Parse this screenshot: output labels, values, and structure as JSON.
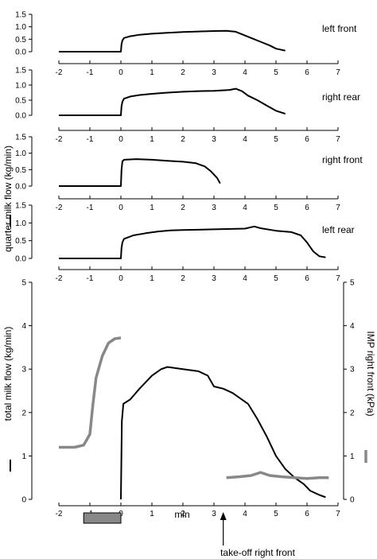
{
  "chart_data": {
    "type": "line",
    "x_unit_label": "min",
    "x_ticks": [
      -2,
      -1,
      0,
      1,
      2,
      3,
      4,
      5,
      6,
      7
    ],
    "quarter_ylabel": "quarter milk flow   (kg/min)",
    "annotation_label": "take-off right front",
    "annotation_x": 3.3,
    "panels": [
      {
        "name": "left front",
        "ylim": [
          0,
          1.5
        ],
        "yticks": [
          "0.0",
          "0.5",
          "1.0",
          "1.5"
        ],
        "series": [
          {
            "color": "#000000",
            "points": [
              [
                -2,
                0
              ],
              [
                0,
                0
              ],
              [
                0.02,
                0.3
              ],
              [
                0.05,
                0.45
              ],
              [
                0.1,
                0.55
              ],
              [
                0.3,
                0.62
              ],
              [
                0.6,
                0.68
              ],
              [
                1.0,
                0.72
              ],
              [
                1.5,
                0.76
              ],
              [
                2.0,
                0.79
              ],
              [
                2.5,
                0.81
              ],
              [
                3.0,
                0.83
              ],
              [
                3.4,
                0.84
              ],
              [
                3.7,
                0.8
              ],
              [
                3.9,
                0.7
              ],
              [
                4.2,
                0.55
              ],
              [
                4.5,
                0.4
              ],
              [
                4.8,
                0.25
              ],
              [
                5.0,
                0.12
              ],
              [
                5.3,
                0.04
              ]
            ]
          }
        ]
      },
      {
        "name": "right rear",
        "ylim": [
          0,
          1.5
        ],
        "yticks": [
          "0.0",
          "0.5",
          "1.0",
          "1.5"
        ],
        "series": [
          {
            "color": "#000000",
            "points": [
              [
                -2,
                0
              ],
              [
                0,
                0
              ],
              [
                0.02,
                0.3
              ],
              [
                0.05,
                0.45
              ],
              [
                0.1,
                0.55
              ],
              [
                0.3,
                0.62
              ],
              [
                0.6,
                0.67
              ],
              [
                1.0,
                0.71
              ],
              [
                1.5,
                0.75
              ],
              [
                2.0,
                0.78
              ],
              [
                2.5,
                0.8
              ],
              [
                3.0,
                0.81
              ],
              [
                3.5,
                0.84
              ],
              [
                3.7,
                0.88
              ],
              [
                3.9,
                0.8
              ],
              [
                4.1,
                0.65
              ],
              [
                4.4,
                0.5
              ],
              [
                4.7,
                0.32
              ],
              [
                5.0,
                0.15
              ],
              [
                5.3,
                0.05
              ]
            ]
          }
        ]
      },
      {
        "name": "right front",
        "ylim": [
          0,
          1.5
        ],
        "yticks": [
          "0.0",
          "0.5",
          "1.0",
          "1.5"
        ],
        "series": [
          {
            "color": "#000000",
            "points": [
              [
                -2,
                0
              ],
              [
                0,
                0
              ],
              [
                0.02,
                0.5
              ],
              [
                0.05,
                0.75
              ],
              [
                0.1,
                0.8
              ],
              [
                0.5,
                0.82
              ],
              [
                1.0,
                0.8
              ],
              [
                1.5,
                0.77
              ],
              [
                2.0,
                0.74
              ],
              [
                2.4,
                0.7
              ],
              [
                2.7,
                0.6
              ],
              [
                2.9,
                0.45
              ],
              [
                3.1,
                0.25
              ],
              [
                3.2,
                0.08
              ]
            ]
          }
        ]
      },
      {
        "name": "left rear",
        "ylim": [
          0,
          1.5
        ],
        "yticks": [
          "0.0",
          "0.5",
          "1.0",
          "1.5"
        ],
        "series": [
          {
            "color": "#000000",
            "points": [
              [
                -2,
                0
              ],
              [
                0,
                0
              ],
              [
                0.02,
                0.3
              ],
              [
                0.05,
                0.45
              ],
              [
                0.1,
                0.55
              ],
              [
                0.4,
                0.65
              ],
              [
                0.8,
                0.71
              ],
              [
                1.2,
                0.76
              ],
              [
                1.6,
                0.79
              ],
              [
                2.0,
                0.8
              ],
              [
                3.0,
                0.82
              ],
              [
                4.0,
                0.84
              ],
              [
                4.3,
                0.9
              ],
              [
                4.5,
                0.85
              ],
              [
                5.0,
                0.78
              ],
              [
                5.5,
                0.74
              ],
              [
                5.8,
                0.65
              ],
              [
                6.0,
                0.45
              ],
              [
                6.2,
                0.2
              ],
              [
                6.4,
                0.06
              ],
              [
                6.6,
                0.03
              ]
            ]
          }
        ]
      }
    ],
    "total_panel": {
      "ylim": [
        0,
        5
      ],
      "yticks": [
        "0",
        "1",
        "2",
        "3",
        "4",
        "5"
      ],
      "ylabel_left": "total milk flow   (kg/min)",
      "ylabel_right": "IMP right front   (kPa)",
      "series": [
        {
          "color": "#000000",
          "points": [
            [
              0,
              0
            ],
            [
              0.03,
              1.8
            ],
            [
              0.08,
              2.2
            ],
            [
              0.3,
              2.3
            ],
            [
              0.6,
              2.55
            ],
            [
              1.0,
              2.85
            ],
            [
              1.3,
              3.0
            ],
            [
              1.5,
              3.05
            ],
            [
              2.0,
              3.0
            ],
            [
              2.5,
              2.95
            ],
            [
              2.8,
              2.85
            ],
            [
              3.0,
              2.6
            ],
            [
              3.3,
              2.55
            ],
            [
              3.6,
              2.45
            ],
            [
              3.8,
              2.35
            ],
            [
              4.1,
              2.2
            ],
            [
              4.4,
              1.85
            ],
            [
              4.7,
              1.45
            ],
            [
              5.0,
              1.0
            ],
            [
              5.3,
              0.7
            ],
            [
              5.6,
              0.5
            ],
            [
              5.9,
              0.35
            ],
            [
              6.1,
              0.2
            ],
            [
              6.4,
              0.1
            ],
            [
              6.6,
              0.05
            ]
          ]
        },
        {
          "color": "#888888",
          "points": [
            [
              -2,
              1.2
            ],
            [
              -1.5,
              1.2
            ],
            [
              -1.2,
              1.25
            ],
            [
              -1.0,
              1.5
            ],
            [
              -0.9,
              2.2
            ],
            [
              -0.8,
              2.8
            ],
            [
              -0.6,
              3.3
            ],
            [
              -0.4,
              3.6
            ],
            [
              -0.2,
              3.7
            ],
            [
              0,
              3.72
            ]
          ]
        },
        {
          "color": "#888888",
          "points": [
            [
              3.4,
              0.5
            ],
            [
              3.8,
              0.52
            ],
            [
              4.2,
              0.55
            ],
            [
              4.5,
              0.62
            ],
            [
              4.8,
              0.55
            ],
            [
              5.2,
              0.52
            ],
            [
              5.6,
              0.5
            ],
            [
              6.0,
              0.48
            ],
            [
              6.4,
              0.5
            ],
            [
              6.7,
              0.5
            ]
          ]
        }
      ]
    },
    "bar_marker": {
      "x_start": -1.2,
      "x_end": 0.0
    }
  }
}
